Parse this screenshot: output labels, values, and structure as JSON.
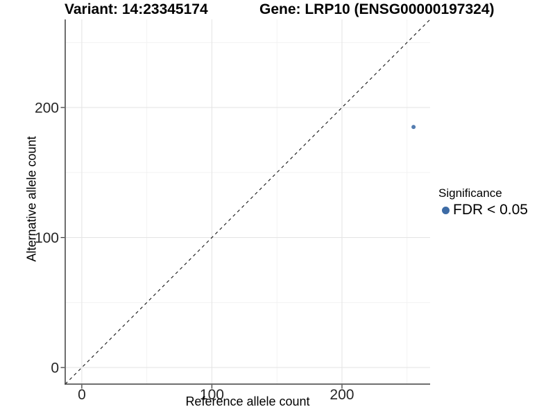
{
  "chart_data": {
    "type": "scatter",
    "title_left": "Variant: 14:23345174",
    "title_right": "Gene: LRP10 (ENSG00000197324)",
    "xlabel": "Reference allele count",
    "ylabel": "Alternative allele count",
    "xlim": [
      -12.75,
      267.75
    ],
    "ylim": [
      -12.75,
      267.75
    ],
    "x_ticks": [
      0,
      100,
      200
    ],
    "y_ticks": [
      0,
      100,
      200
    ],
    "x_minor_ticks": [
      50,
      150,
      250
    ],
    "y_minor_ticks": [
      50,
      150,
      250
    ],
    "grid": true,
    "reference_line": {
      "slope": 1,
      "intercept": 0,
      "style": "dashed"
    },
    "series": [
      {
        "name": "FDR < 0.05",
        "color": "#3d6ba5",
        "points": [
          {
            "x": 255,
            "y": 185
          }
        ]
      }
    ],
    "legend": {
      "title": "Significance",
      "position": "right",
      "items": [
        {
          "label": "FDR < 0.05",
          "color": "#3d6ba5"
        }
      ]
    }
  },
  "colors": {
    "point": "#3d6ba5",
    "grid_major": "#e5e5e5",
    "grid_minor": "#f1f1f1",
    "axis": "#3f3f3f",
    "dashed_line": "#141414",
    "text": "#000000"
  }
}
